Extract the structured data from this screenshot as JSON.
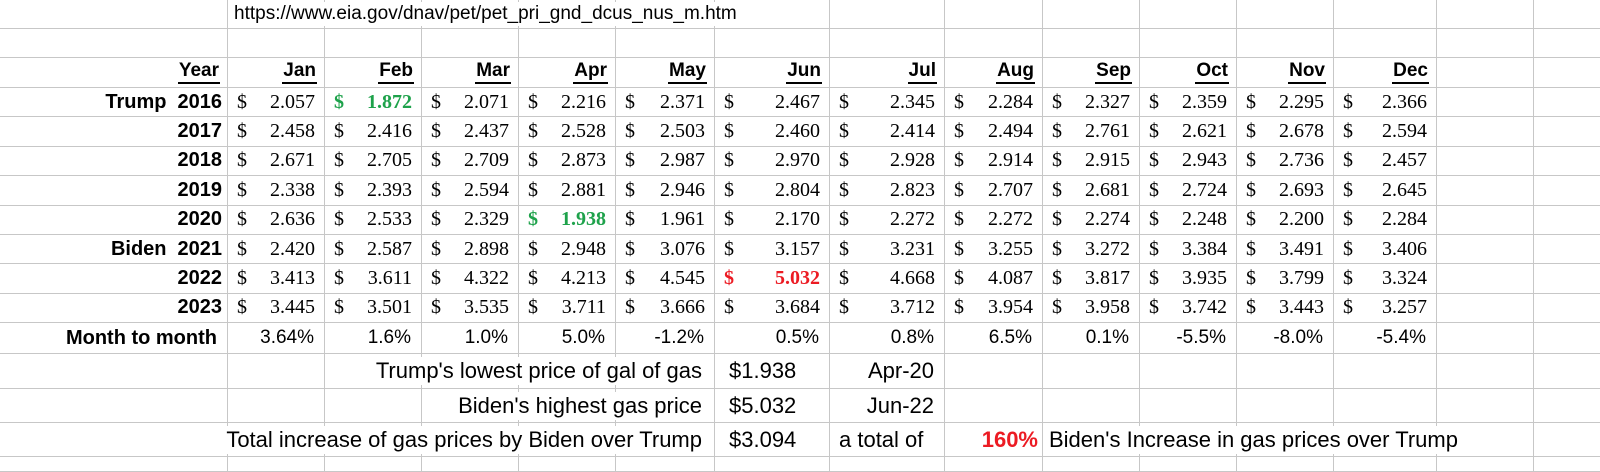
{
  "source": {
    "url_text": "https://www.eia.gov/dnav/pet/pet_pri_gnd_dcus_nus_m.htm"
  },
  "table": {
    "year_header": "Year",
    "months": [
      "Jan",
      "Feb",
      "Mar",
      "Apr",
      "May",
      "Jun",
      "Jul",
      "Aug",
      "Sep",
      "Oct",
      "Nov",
      "Dec"
    ],
    "currency_symbol": "$",
    "rows": [
      {
        "president": "Trump",
        "year": "2016",
        "values": [
          "2.057",
          "1.872",
          "2.071",
          "2.216",
          "2.371",
          "2.467",
          "2.345",
          "2.284",
          "2.327",
          "2.359",
          "2.295",
          "2.366"
        ]
      },
      {
        "president": "",
        "year": "2017",
        "values": [
          "2.458",
          "2.416",
          "2.437",
          "2.528",
          "2.503",
          "2.460",
          "2.414",
          "2.494",
          "2.761",
          "2.621",
          "2.678",
          "2.594"
        ]
      },
      {
        "president": "",
        "year": "2018",
        "values": [
          "2.671",
          "2.705",
          "2.709",
          "2.873",
          "2.987",
          "2.970",
          "2.928",
          "2.914",
          "2.915",
          "2.943",
          "2.736",
          "2.457"
        ]
      },
      {
        "president": "",
        "year": "2019",
        "values": [
          "2.338",
          "2.393",
          "2.594",
          "2.881",
          "2.946",
          "2.804",
          "2.823",
          "2.707",
          "2.681",
          "2.724",
          "2.693",
          "2.645"
        ]
      },
      {
        "president": "",
        "year": "2020",
        "values": [
          "2.636",
          "2.533",
          "2.329",
          "1.938",
          "1.961",
          "2.170",
          "2.272",
          "2.272",
          "2.274",
          "2.248",
          "2.200",
          "2.284"
        ]
      },
      {
        "president": "Biden",
        "year": "2021",
        "values": [
          "2.420",
          "2.587",
          "2.898",
          "2.948",
          "3.076",
          "3.157",
          "3.231",
          "3.255",
          "3.272",
          "3.384",
          "3.491",
          "3.406"
        ]
      },
      {
        "president": "",
        "year": "2022",
        "values": [
          "3.413",
          "3.611",
          "4.322",
          "4.213",
          "4.545",
          "5.032",
          "4.668",
          "4.087",
          "3.817",
          "3.935",
          "3.799",
          "3.324"
        ]
      },
      {
        "president": "",
        "year": "2023",
        "values": [
          "3.445",
          "3.501",
          "3.535",
          "3.711",
          "3.666",
          "3.684",
          "3.712",
          "3.954",
          "3.958",
          "3.742",
          "3.443",
          "3.257"
        ]
      }
    ],
    "highlights": [
      {
        "row": 0,
        "col": 1,
        "color": "green"
      },
      {
        "row": 4,
        "col": 3,
        "color": "green"
      },
      {
        "row": 6,
        "col": 5,
        "color": "red"
      }
    ],
    "month_to_month": {
      "label": "Month to month",
      "values": [
        "3.64%",
        "1.6%",
        "1.0%",
        "5.0%",
        "-1.2%",
        "0.5%",
        "0.8%",
        "6.5%",
        "0.1%",
        "-5.5%",
        "-8.0%",
        "-5.4%"
      ]
    }
  },
  "summary": {
    "trump_lowest": {
      "label": "Trump's lowest price of gal of gas",
      "value": "$1.938",
      "date": "Apr-20"
    },
    "biden_highest": {
      "label": "Biden's highest gas price",
      "value": "$5.032",
      "date": "Jun-22"
    },
    "total_increase": {
      "label": "Total increase of gas prices by Biden over Trump",
      "value": "$3.094",
      "note": "a total of",
      "percent": "160%",
      "tail": "Biden's Increase in gas prices over Trump"
    }
  },
  "colors": {
    "green": "#1ea24b",
    "red": "#ec1b23",
    "gridline": "#c7c7c7"
  }
}
